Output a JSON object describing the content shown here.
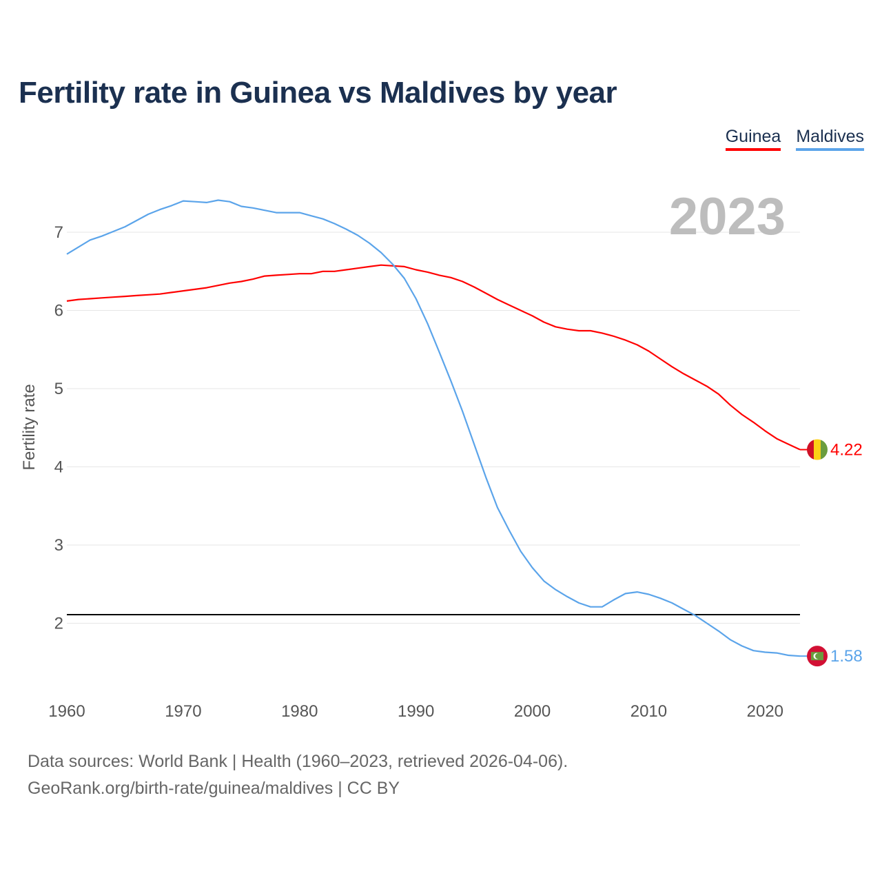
{
  "chart_data": {
    "type": "line",
    "title": "Fertility rate in Guinea vs Maldives by year",
    "xlabel": "",
    "ylabel": "Fertility rate",
    "xlim": [
      1960,
      2023
    ],
    "ylim": [
      1.2,
      7.6
    ],
    "x_ticks": [
      1960,
      1970,
      1980,
      1990,
      2000,
      2010,
      2020
    ],
    "y_ticks": [
      2,
      3,
      4,
      5,
      6,
      7
    ],
    "grid": true,
    "legend_position": "top-right",
    "year_label": "2023",
    "reference_line": {
      "value": 2.11,
      "color": "#000000"
    },
    "x": [
      1960,
      1961,
      1962,
      1963,
      1964,
      1965,
      1966,
      1967,
      1968,
      1969,
      1970,
      1971,
      1972,
      1973,
      1974,
      1975,
      1976,
      1977,
      1978,
      1979,
      1980,
      1981,
      1982,
      1983,
      1984,
      1985,
      1986,
      1987,
      1988,
      1989,
      1990,
      1991,
      1992,
      1993,
      1994,
      1995,
      1996,
      1997,
      1998,
      1999,
      2000,
      2001,
      2002,
      2003,
      2004,
      2005,
      2006,
      2007,
      2008,
      2009,
      2010,
      2011,
      2012,
      2013,
      2014,
      2015,
      2016,
      2017,
      2018,
      2019,
      2020,
      2021,
      2022,
      2023
    ],
    "series": [
      {
        "name": "Guinea",
        "color": "#ff0000",
        "end_label": "4.22",
        "values": [
          6.12,
          6.14,
          6.15,
          6.16,
          6.17,
          6.18,
          6.19,
          6.2,
          6.21,
          6.23,
          6.25,
          6.27,
          6.29,
          6.32,
          6.35,
          6.37,
          6.4,
          6.44,
          6.45,
          6.46,
          6.47,
          6.47,
          6.5,
          6.5,
          6.52,
          6.54,
          6.56,
          6.58,
          6.57,
          6.56,
          6.52,
          6.49,
          6.45,
          6.42,
          6.37,
          6.3,
          6.22,
          6.14,
          6.07,
          6.0,
          5.93,
          5.85,
          5.79,
          5.76,
          5.74,
          5.74,
          5.71,
          5.67,
          5.62,
          5.56,
          5.48,
          5.38,
          5.28,
          5.19,
          5.11,
          5.03,
          4.93,
          4.79,
          4.67,
          4.57,
          4.46,
          4.36,
          4.29,
          4.22
        ]
      },
      {
        "name": "Maldives",
        "color": "#5ba4ea",
        "end_label": "1.58",
        "values": [
          6.72,
          6.81,
          6.9,
          6.95,
          7.01,
          7.07,
          7.15,
          7.23,
          7.29,
          7.34,
          7.4,
          7.39,
          7.38,
          7.41,
          7.39,
          7.33,
          7.31,
          7.28,
          7.25,
          7.25,
          7.25,
          7.21,
          7.17,
          7.11,
          7.04,
          6.96,
          6.86,
          6.74,
          6.59,
          6.41,
          6.15,
          5.83,
          5.47,
          5.1,
          4.71,
          4.29,
          3.87,
          3.48,
          3.19,
          2.92,
          2.71,
          2.54,
          2.43,
          2.34,
          2.26,
          2.21,
          2.21,
          2.3,
          2.38,
          2.4,
          2.37,
          2.32,
          2.26,
          2.18,
          2.1,
          2.0,
          1.9,
          1.79,
          1.71,
          1.65,
          1.63,
          1.62,
          1.59,
          1.58
        ]
      }
    ]
  },
  "footer": {
    "line1": "Data sources: World Bank | Health (1960–2023, retrieved 2026-04-06).",
    "line2": "GeoRank.org/birth-rate/guinea/maldives | CC BY"
  }
}
